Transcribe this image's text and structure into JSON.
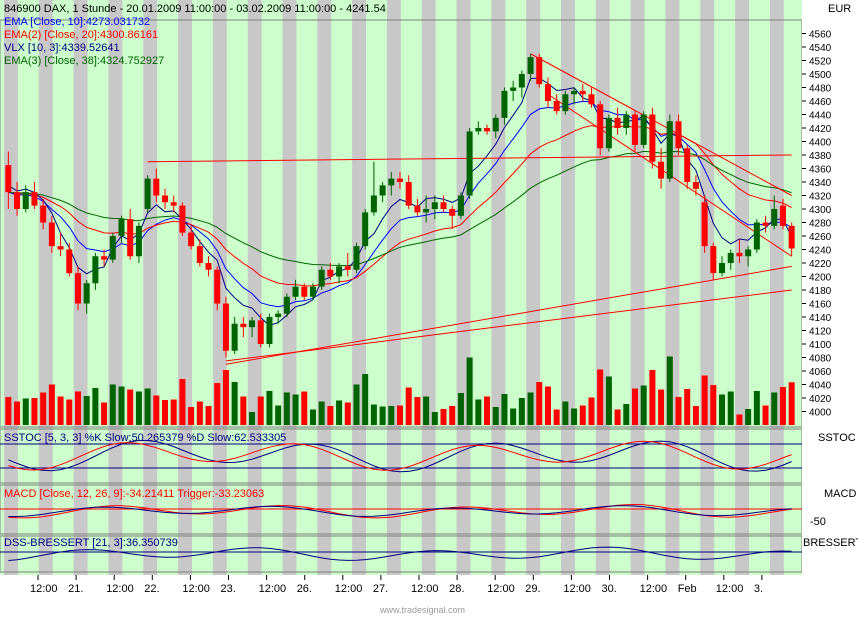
{
  "header": {
    "title": "846900  DAX, 1 Stunde - 20.01.2009 11:00:00 - 03.02.2009 11:00:00 - 4241.54",
    "currency": "EUR",
    "watermark": "www.tradesignal.com"
  },
  "legend": [
    {
      "text": "EMA [Close, 10]:4273.031732",
      "color": "#0000ff"
    },
    {
      "text": "EMA(2) [Close, 20]:4300.86161",
      "color": "#ff0000"
    },
    {
      "text": "VLX [10, 3]:4339.52641",
      "color": "#000080"
    },
    {
      "text": "EMA(3) [Close, 38]:4324.752927",
      "color": "#006400"
    }
  ],
  "panes": {
    "sstoc": {
      "legend": "SSTOC [5, 3, 3] %K Slow:50.265379 %D Slow:62.533305",
      "label": "SSTOC"
    },
    "macd": {
      "legend": "MACD [Close, 12, 26, 9]:-34.21411  Trigger:-33.23063",
      "label": "MACD",
      "tick": "-50"
    },
    "dss": {
      "legend": "DSS-BRESSERT [21, 3]:36.350739",
      "label": "BRESSERT"
    }
  },
  "colors": {
    "up": "#006400",
    "down": "#ff0000",
    "shade_light": "#ccffcc",
    "shade_gray": "#c8c8c8",
    "ema10": "#0000ff",
    "ema20": "#ff0000",
    "vlx": "#000080",
    "ema38": "#006400"
  },
  "chart_data": {
    "type": "candlestick",
    "symbol": "DAX",
    "interval": "1 Stunde",
    "ylim": [
      3980,
      4580
    ],
    "y_ticks": [
      4000,
      4020,
      4040,
      4060,
      4080,
      4100,
      4120,
      4140,
      4160,
      4180,
      4200,
      4220,
      4240,
      4260,
      4280,
      4300,
      4320,
      4340,
      4360,
      4380,
      4400,
      4420,
      4440,
      4460,
      4480,
      4500,
      4520,
      4540,
      4560
    ],
    "x_ticks": [
      "12:00",
      "21.",
      "12:00",
      "22.",
      "12:00",
      "23.",
      "12:00",
      "26.",
      "12:00",
      "27.",
      "12:00",
      "28.",
      "12:00",
      "29.",
      "12:00",
      "30.",
      "12:00",
      "Feb",
      "12:00",
      "3."
    ],
    "candles": [
      {
        "o": 4365,
        "h": 4385,
        "l": 4300,
        "c": 4325
      },
      {
        "o": 4325,
        "h": 4340,
        "l": 4290,
        "c": 4300
      },
      {
        "o": 4300,
        "h": 4335,
        "l": 4295,
        "c": 4325
      },
      {
        "o": 4325,
        "h": 4340,
        "l": 4300,
        "c": 4305
      },
      {
        "o": 4305,
        "h": 4315,
        "l": 4270,
        "c": 4280
      },
      {
        "o": 4280,
        "h": 4290,
        "l": 4235,
        "c": 4245
      },
      {
        "o": 4245,
        "h": 4265,
        "l": 4230,
        "c": 4240
      },
      {
        "o": 4240,
        "h": 4250,
        "l": 4200,
        "c": 4205
      },
      {
        "o": 4205,
        "h": 4215,
        "l": 4150,
        "c": 4160
      },
      {
        "o": 4160,
        "h": 4195,
        "l": 4145,
        "c": 4190
      },
      {
        "o": 4190,
        "h": 4235,
        "l": 4180,
        "c": 4230
      },
      {
        "o": 4230,
        "h": 4240,
        "l": 4215,
        "c": 4225
      },
      {
        "o": 4225,
        "h": 4265,
        "l": 4220,
        "c": 4260
      },
      {
        "o": 4260,
        "h": 4290,
        "l": 4250,
        "c": 4285
      },
      {
        "o": 4285,
        "h": 4300,
        "l": 4225,
        "c": 4230
      },
      {
        "o": 4230,
        "h": 4280,
        "l": 4220,
        "c": 4275
      },
      {
        "o": 4300,
        "h": 4350,
        "l": 4295,
        "c": 4345
      },
      {
        "o": 4345,
        "h": 4360,
        "l": 4310,
        "c": 4320
      },
      {
        "o": 4320,
        "h": 4330,
        "l": 4300,
        "c": 4310
      },
      {
        "o": 4310,
        "h": 4320,
        "l": 4295,
        "c": 4305
      },
      {
        "o": 4305,
        "h": 4310,
        "l": 4260,
        "c": 4265
      },
      {
        "o": 4265,
        "h": 4275,
        "l": 4240,
        "c": 4245
      },
      {
        "o": 4245,
        "h": 4255,
        "l": 4215,
        "c": 4220
      },
      {
        "o": 4220,
        "h": 4230,
        "l": 4200,
        "c": 4210
      },
      {
        "o": 4210,
        "h": 4215,
        "l": 4150,
        "c": 4160
      },
      {
        "o": 4160,
        "h": 4170,
        "l": 4080,
        "c": 4090
      },
      {
        "o": 4090,
        "h": 4140,
        "l": 4085,
        "c": 4130
      },
      {
        "o": 4130,
        "h": 4140,
        "l": 4110,
        "c": 4125
      },
      {
        "o": 4125,
        "h": 4140,
        "l": 4110,
        "c": 4135
      },
      {
        "o": 4135,
        "h": 4145,
        "l": 4095,
        "c": 4100
      },
      {
        "o": 4100,
        "h": 4145,
        "l": 4095,
        "c": 4140
      },
      {
        "o": 4140,
        "h": 4150,
        "l": 4130,
        "c": 4145
      },
      {
        "o": 4145,
        "h": 4175,
        "l": 4140,
        "c": 4170
      },
      {
        "o": 4170,
        "h": 4195,
        "l": 4165,
        "c": 4185
      },
      {
        "o": 4185,
        "h": 4190,
        "l": 4165,
        "c": 4170
      },
      {
        "o": 4170,
        "h": 4190,
        "l": 4165,
        "c": 4185
      },
      {
        "o": 4185,
        "h": 4215,
        "l": 4180,
        "c": 4210
      },
      {
        "o": 4210,
        "h": 4220,
        "l": 4195,
        "c": 4200
      },
      {
        "o": 4200,
        "h": 4220,
        "l": 4190,
        "c": 4215
      },
      {
        "o": 4215,
        "h": 4235,
        "l": 4200,
        "c": 4210
      },
      {
        "o": 4210,
        "h": 4250,
        "l": 4205,
        "c": 4245
      },
      {
        "o": 4245,
        "h": 4300,
        "l": 4240,
        "c": 4295
      },
      {
        "o": 4295,
        "h": 4370,
        "l": 4290,
        "c": 4320
      },
      {
        "o": 4320,
        "h": 4340,
        "l": 4310,
        "c": 4335
      },
      {
        "o": 4335,
        "h": 4355,
        "l": 4320,
        "c": 4345
      },
      {
        "o": 4345,
        "h": 4355,
        "l": 4330,
        "c": 4340
      },
      {
        "o": 4340,
        "h": 4350,
        "l": 4300,
        "c": 4305
      },
      {
        "o": 4305,
        "h": 4315,
        "l": 4290,
        "c": 4295
      },
      {
        "o": 4295,
        "h": 4320,
        "l": 4280,
        "c": 4300
      },
      {
        "o": 4300,
        "h": 4320,
        "l": 4285,
        "c": 4310
      },
      {
        "o": 4310,
        "h": 4320,
        "l": 4295,
        "c": 4300
      },
      {
        "o": 4300,
        "h": 4305,
        "l": 4270,
        "c": 4290
      },
      {
        "o": 4290,
        "h": 4325,
        "l": 4285,
        "c": 4320
      },
      {
        "o": 4320,
        "h": 4420,
        "l": 4315,
        "c": 4415
      },
      {
        "o": 4415,
        "h": 4430,
        "l": 4410,
        "c": 4420
      },
      {
        "o": 4420,
        "h": 4425,
        "l": 4410,
        "c": 4415
      },
      {
        "o": 4415,
        "h": 4440,
        "l": 4405,
        "c": 4435
      },
      {
        "o": 4435,
        "h": 4480,
        "l": 4425,
        "c": 4475
      },
      {
        "o": 4475,
        "h": 4490,
        "l": 4460,
        "c": 4480
      },
      {
        "o": 4480,
        "h": 4505,
        "l": 4465,
        "c": 4500
      },
      {
        "o": 4500,
        "h": 4530,
        "l": 4490,
        "c": 4525
      },
      {
        "o": 4525,
        "h": 4530,
        "l": 4480,
        "c": 4485
      },
      {
        "o": 4485,
        "h": 4495,
        "l": 4450,
        "c": 4460
      },
      {
        "o": 4460,
        "h": 4470,
        "l": 4440,
        "c": 4445
      },
      {
        "o": 4445,
        "h": 4475,
        "l": 4440,
        "c": 4470
      },
      {
        "o": 4470,
        "h": 4480,
        "l": 4455,
        "c": 4475
      },
      {
        "o": 4475,
        "h": 4485,
        "l": 4460,
        "c": 4470
      },
      {
        "o": 4470,
        "h": 4480,
        "l": 4450,
        "c": 4455
      },
      {
        "o": 4455,
        "h": 4460,
        "l": 4380,
        "c": 4390
      },
      {
        "o": 4390,
        "h": 4440,
        "l": 4385,
        "c": 4435
      },
      {
        "o": 4435,
        "h": 4450,
        "l": 4410,
        "c": 4420
      },
      {
        "o": 4420,
        "h": 4445,
        "l": 4410,
        "c": 4440
      },
      {
        "o": 4440,
        "h": 4445,
        "l": 4385,
        "c": 4395
      },
      {
        "o": 4395,
        "h": 4445,
        "l": 4390,
        "c": 4440
      },
      {
        "o": 4440,
        "h": 4450,
        "l": 4360,
        "c": 4370
      },
      {
        "o": 4370,
        "h": 4390,
        "l": 4330,
        "c": 4345
      },
      {
        "o": 4345,
        "h": 4440,
        "l": 4340,
        "c": 4430
      },
      {
        "o": 4430,
        "h": 4440,
        "l": 4380,
        "c": 4390
      },
      {
        "o": 4390,
        "h": 4395,
        "l": 4330,
        "c": 4340
      },
      {
        "o": 4340,
        "h": 4350,
        "l": 4320,
        "c": 4330
      },
      {
        "o": 4310,
        "h": 4320,
        "l": 4235,
        "c": 4245
      },
      {
        "o": 4245,
        "h": 4250,
        "l": 4195,
        "c": 4205
      },
      {
        "o": 4205,
        "h": 4230,
        "l": 4200,
        "c": 4220
      },
      {
        "o": 4220,
        "h": 4240,
        "l": 4210,
        "c": 4235
      },
      {
        "o": 4235,
        "h": 4255,
        "l": 4220,
        "c": 4230
      },
      {
        "o": 4230,
        "h": 4245,
        "l": 4215,
        "c": 4240
      },
      {
        "o": 4240,
        "h": 4285,
        "l": 4235,
        "c": 4280
      },
      {
        "o": 4280,
        "h": 4290,
        "l": 4265,
        "c": 4275
      },
      {
        "o": 4275,
        "h": 4320,
        "l": 4270,
        "c": 4300
      },
      {
        "o": 4305,
        "h": 4315,
        "l": 4270,
        "c": 4275
      },
      {
        "o": 4275,
        "h": 4280,
        "l": 4230,
        "c": 4241.54
      }
    ],
    "volume_note": "volume bars colored by candle direction"
  }
}
